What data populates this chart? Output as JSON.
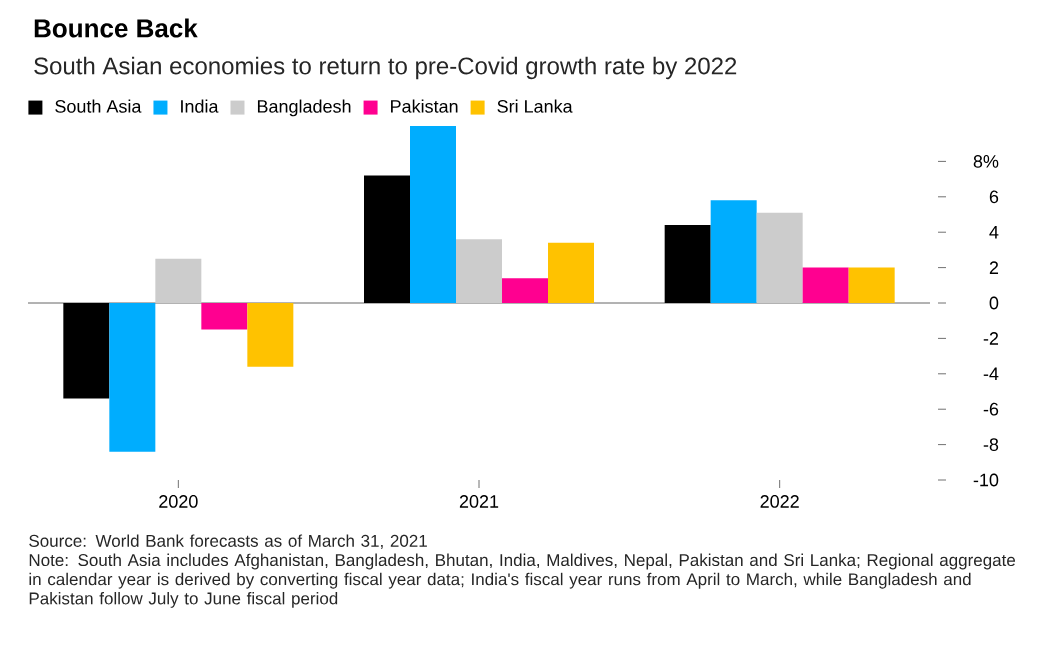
{
  "chart_data": {
    "type": "bar",
    "title": "Bounce Back",
    "subtitle": "South Asian economies to return to pre-Covid growth rate by 2022",
    "categories": [
      "2020",
      "2021",
      "2022"
    ],
    "series": [
      {
        "name": "South Asia",
        "color": "#000000",
        "values": [
          -5.4,
          7.2,
          4.4
        ]
      },
      {
        "name": "India",
        "color": "#00adfe",
        "values": [
          -8.4,
          10.0,
          5.8
        ]
      },
      {
        "name": "Bangladesh",
        "color": "#cccccc",
        "values": [
          2.5,
          3.6,
          5.1
        ]
      },
      {
        "name": "Pakistan",
        "color": "#ff0090",
        "values": [
          -1.5,
          1.4,
          2.0
        ]
      },
      {
        "name": "Sri Lanka",
        "color": "#ffc200",
        "values": [
          -3.6,
          3.4,
          2.0
        ]
      }
    ],
    "ylim": [
      -10,
      10
    ],
    "yticks": [
      -10,
      -8,
      -6,
      -4,
      -2,
      0,
      2,
      4,
      6,
      {
        "value": 8,
        "label": "8%"
      }
    ],
    "legend": "top left",
    "annotations": [
      "Source: World Bank forecasts as of March 31, 2021",
      "Note: South Asia includes Afghanistan, Bangladesh, Bhutan, India, Maldives, Nepal, Pakistan and Sri Lanka; Regional aggregate in calendar year is derived by converting fiscal year data; India's fiscal year runs from April to March, while Bangladesh and Pakistan follow July to June fiscal period"
    ]
  }
}
